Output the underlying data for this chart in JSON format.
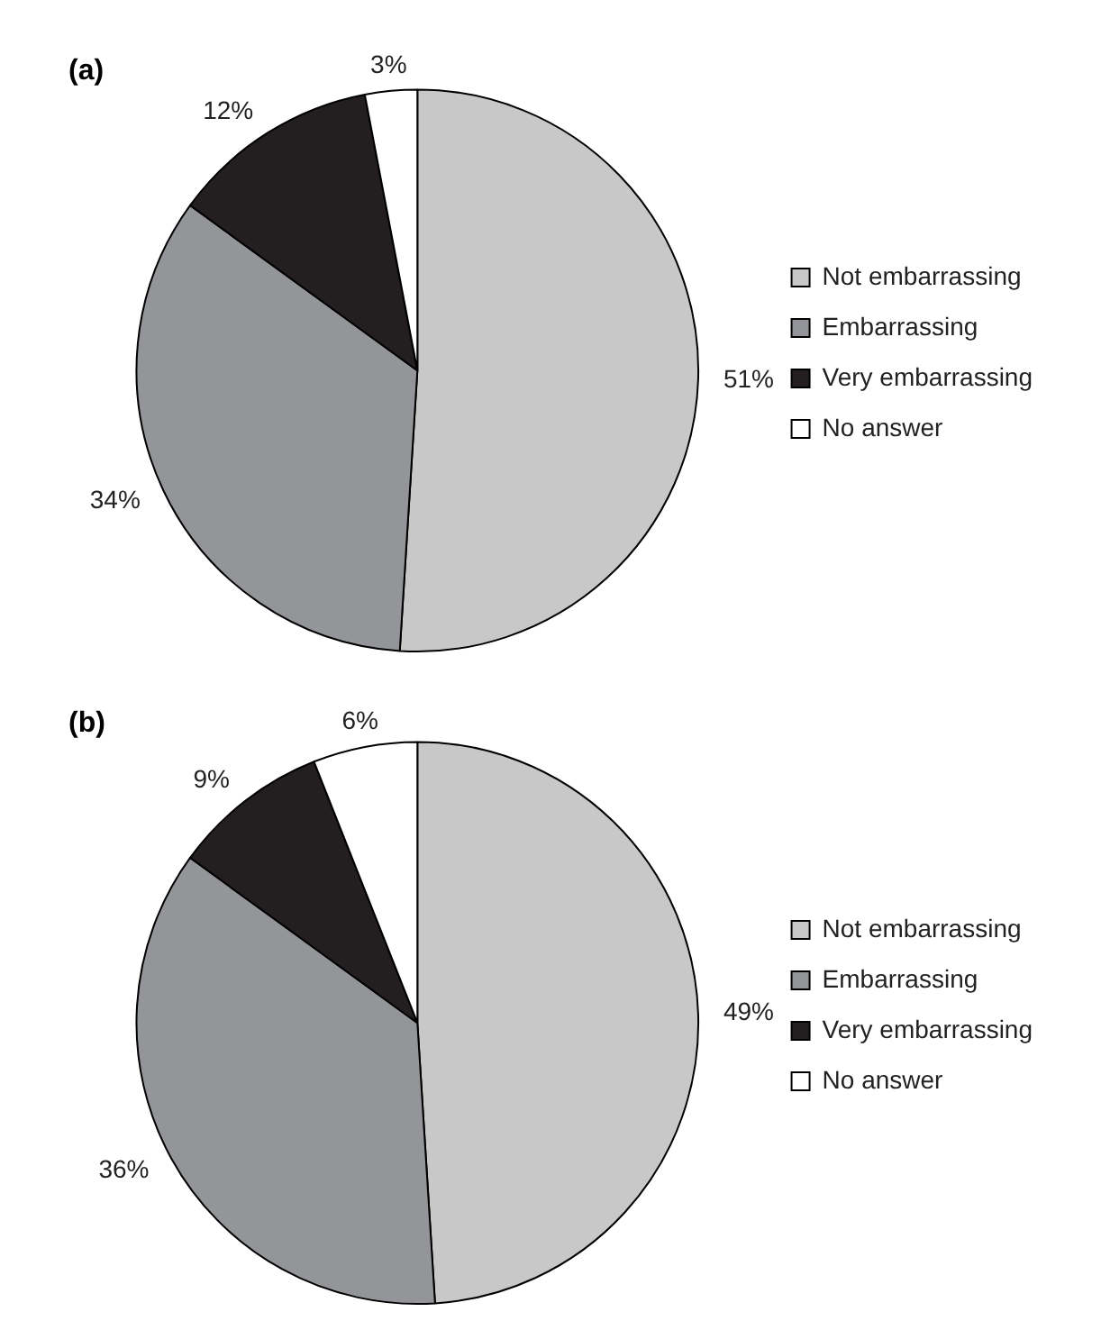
{
  "chart_data": [
    {
      "type": "pie",
      "title": "(a)",
      "categories": [
        "Not embarrassing",
        "Embarrassing",
        "Very embarrassing",
        "No answer"
      ],
      "values": [
        51,
        34,
        12,
        3
      ],
      "value_labels": [
        "51%",
        "34%",
        "12%",
        "3%"
      ],
      "colors": [
        "#c8c8c8",
        "#939598",
        "#231f20",
        "#ffffff"
      ],
      "legend": "right"
    },
    {
      "type": "pie",
      "title": "(b)",
      "categories": [
        "Not embarrassing",
        "Embarrassing",
        "Very embarrassing",
        "No answer"
      ],
      "values": [
        49,
        36,
        9,
        6
      ],
      "value_labels": [
        "49%",
        "36%",
        "9%",
        "6%"
      ],
      "colors": [
        "#c8c8c8",
        "#939598",
        "#231f20",
        "#ffffff"
      ],
      "legend": "right"
    }
  ]
}
